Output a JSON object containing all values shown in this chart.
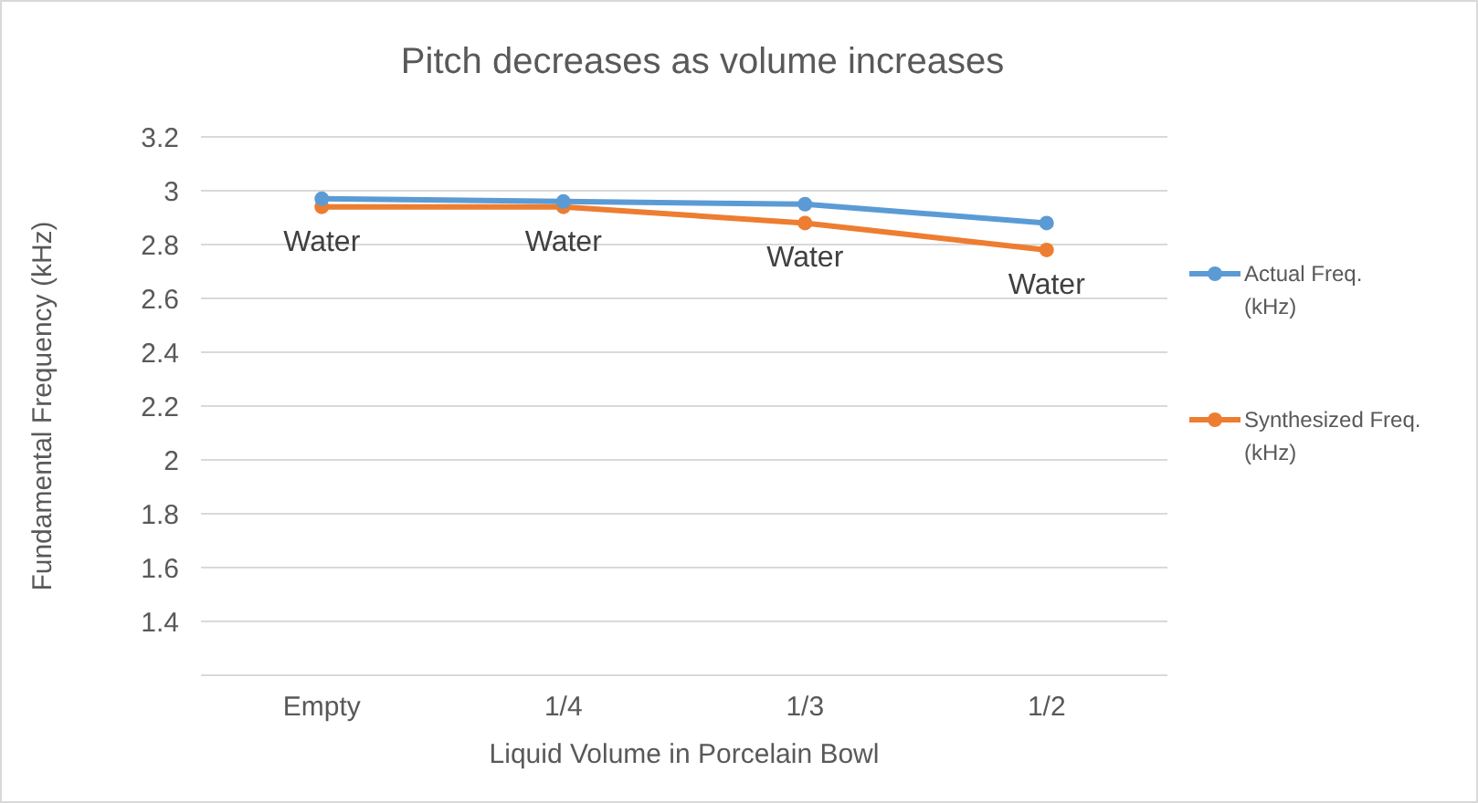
{
  "chart_data": {
    "type": "line",
    "title": "Pitch decreases as volume increases",
    "xlabel": "Liquid Volume in Porcelain Bowl",
    "ylabel": "Fundamental Frequency (kHz)",
    "categories": [
      "Empty",
      "1/4",
      "1/3",
      "1/2"
    ],
    "series": [
      {
        "name": "Actual Freq. (kHz)",
        "color": "#5b9bd5",
        "values": [
          2.97,
          2.96,
          2.95,
          2.88
        ]
      },
      {
        "name": "Synthesized Freq. (kHz)",
        "color": "#ed7d31",
        "values": [
          2.94,
          2.94,
          2.88,
          2.78
        ]
      }
    ],
    "ylim": [
      1.2,
      3.2
    ],
    "yticks": [
      1.4,
      1.6,
      1.8,
      2,
      2.2,
      2.4,
      2.6,
      2.8,
      3,
      3.2
    ],
    "grid": "y",
    "legend": "right",
    "marker": "circle",
    "line_style": "solid",
    "annotations": [
      {
        "text": "Water",
        "x": "Empty",
        "y": 2.94
      },
      {
        "text": "Water",
        "x": "1/4",
        "y": 2.94
      },
      {
        "text": "Water",
        "x": "1/3",
        "y": 2.88
      },
      {
        "text": "Water",
        "x": "1/2",
        "y": 2.78
      }
    ]
  }
}
